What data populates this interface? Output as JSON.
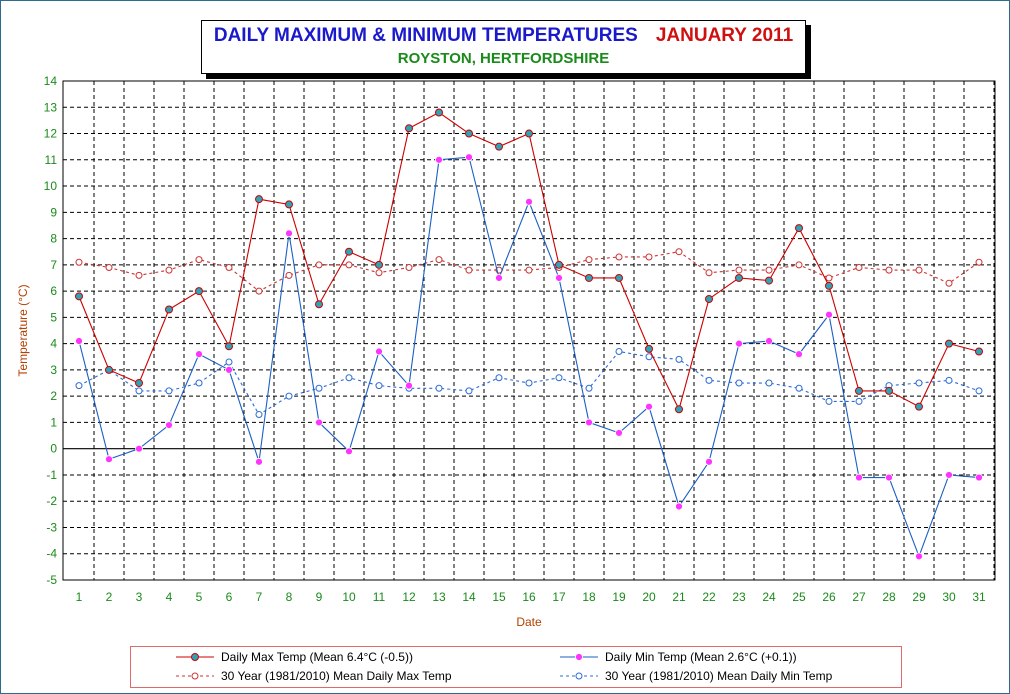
{
  "title": {
    "main": "DAILY MAXIMUM &  MINIMUM  TEMPERATURES",
    "month": "JANUARY 2011",
    "subtitle": "ROYSTON, HERTFORDSHIRE"
  },
  "chart_data": {
    "type": "line",
    "xlabel": "Date",
    "ylabel": "Temperature (°C)",
    "ylim": [
      -5,
      14
    ],
    "xlim": [
      1,
      31
    ],
    "grid": true,
    "legend_position": "bottom",
    "x": [
      1,
      2,
      3,
      4,
      5,
      6,
      7,
      8,
      9,
      10,
      11,
      12,
      13,
      14,
      15,
      16,
      17,
      18,
      19,
      20,
      21,
      22,
      23,
      24,
      25,
      26,
      27,
      28,
      29,
      30,
      31
    ],
    "yticks": [
      "14",
      "13",
      "12",
      "11",
      "10",
      "9",
      "8",
      "7",
      "6",
      "5",
      "4",
      "3",
      "2",
      "1",
      "0",
      "-1",
      "-2",
      "-3",
      "-4",
      "-5"
    ],
    "series": [
      {
        "name": "Daily Max Temp (Mean 6.4°C (-0.5))",
        "color": "#cc0000",
        "marker": "filled-circle",
        "values": [
          5.8,
          3.0,
          2.5,
          5.3,
          6.0,
          3.9,
          9.5,
          9.3,
          5.5,
          7.5,
          7.0,
          12.2,
          12.8,
          12.0,
          11.5,
          12.0,
          7.0,
          6.5,
          6.5,
          3.8,
          1.5,
          5.7,
          6.5,
          6.4,
          8.4,
          6.2,
          2.2,
          2.2,
          1.6,
          4.0,
          3.7
        ]
      },
      {
        "name": "Daily Min Temp (Mean 2.6°C (+0.1))",
        "color": "#1c5fc4",
        "marker": "star",
        "values": [
          4.1,
          -0.4,
          0.0,
          0.9,
          3.6,
          3.0,
          -0.5,
          8.2,
          1.0,
          -0.1,
          3.7,
          2.4,
          11.0,
          11.1,
          6.5,
          9.4,
          6.5,
          1.0,
          0.6,
          1.6,
          -2.2,
          -0.5,
          4.0,
          4.1,
          3.6,
          5.1,
          -1.1,
          -1.1,
          -4.1,
          -1.0,
          -1.1
        ]
      },
      {
        "name": "30 Year (1981/2010) Mean Daily Max Temp",
        "color": "#cc3333",
        "marker": "open-circle",
        "values": [
          7.1,
          6.9,
          6.6,
          6.8,
          7.2,
          6.9,
          6.0,
          6.6,
          7.0,
          7.0,
          6.7,
          6.9,
          7.2,
          6.8,
          6.8,
          6.8,
          6.9,
          7.2,
          7.3,
          7.3,
          7.5,
          6.7,
          6.8,
          6.8,
          7.0,
          6.5,
          6.9,
          6.8,
          6.8,
          6.3,
          7.1
        ]
      },
      {
        "name": "30 Year (1981/2010) Mean Daily Min Temp",
        "color": "#2c6bd4",
        "marker": "open-circle",
        "values": [
          2.4,
          3.0,
          2.2,
          2.2,
          2.5,
          3.3,
          1.3,
          2.0,
          2.3,
          2.7,
          2.4,
          2.3,
          2.3,
          2.2,
          2.7,
          2.5,
          2.7,
          2.3,
          3.7,
          3.5,
          3.4,
          2.6,
          2.5,
          2.5,
          2.3,
          1.8,
          1.8,
          2.4,
          2.5,
          2.6,
          2.2
        ]
      }
    ]
  }
}
